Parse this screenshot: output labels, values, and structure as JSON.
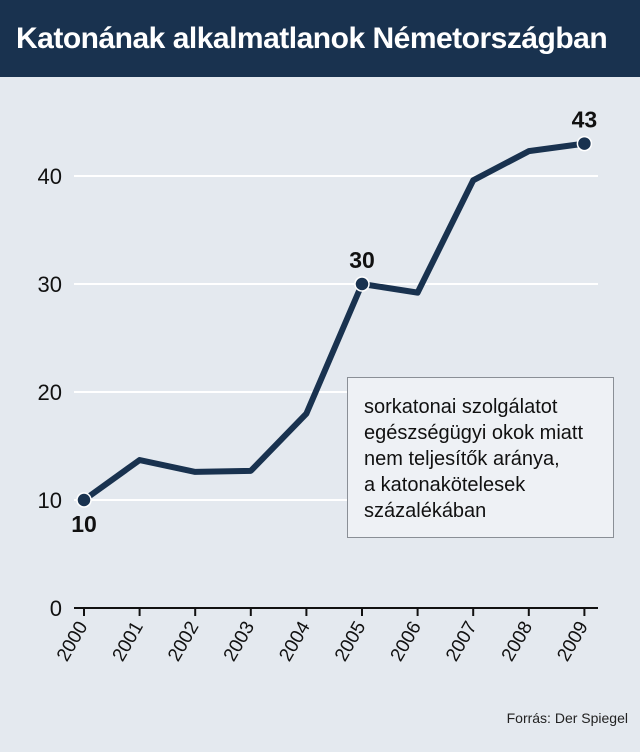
{
  "header": {
    "title": "Katonának alkalmatlanok Németországban"
  },
  "annotation": {
    "lines": [
      "sorkatonai szolgálatot",
      "egészségügyi okok miatt",
      "nem teljesítők aránya,",
      "a katonakötelesek",
      "százalékában"
    ]
  },
  "source": "Forrás: Der Spiegel",
  "colors": {
    "header_bg": "#19324f",
    "line": "#19324f",
    "background": "#e4e9ef",
    "grid": "#ffffff"
  },
  "chart_data": {
    "type": "line",
    "title": "Katonának alkalmatlanok Németországban",
    "xlabel": "",
    "ylabel": "",
    "x": [
      "2000",
      "2001",
      "2002",
      "2003",
      "2004",
      "2005",
      "2006",
      "2007",
      "2008",
      "2009"
    ],
    "y": [
      10,
      13.7,
      12.6,
      12.7,
      18,
      30,
      29.2,
      39.6,
      42.3,
      43
    ],
    "ylim": [
      0,
      45
    ],
    "yticks": [
      "0",
      "10",
      "20",
      "30",
      "40"
    ],
    "labeled_points": [
      {
        "x": "2000",
        "label": "10"
      },
      {
        "x": "2005",
        "label": "30"
      },
      {
        "x": "2009",
        "label": "43"
      }
    ],
    "grid": true
  }
}
